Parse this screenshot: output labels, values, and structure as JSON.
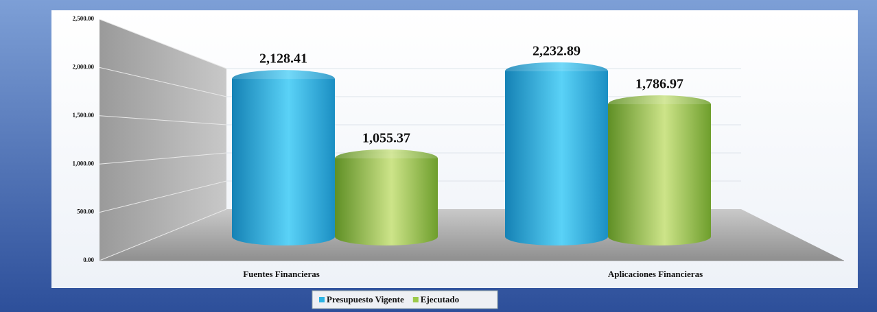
{
  "chart_data": {
    "type": "cylinder",
    "categories": [
      "Fuentes Financieras",
      "Aplicaciones Financieras"
    ],
    "series": [
      {
        "name": "Presupuesto Vigente",
        "color": "#2bb3e3",
        "values": [
          2128.41,
          2232.89
        ],
        "value_labels": [
          "2,128.41",
          "2,232.89"
        ]
      },
      {
        "name": "Ejecutado",
        "color": "#9cc94a",
        "values": [
          1055.37,
          1786.97
        ],
        "value_labels": [
          "1,055.37",
          "1,786.97"
        ]
      }
    ],
    "ylim": [
      0,
      2500
    ],
    "yticks": [
      {
        "value": 0,
        "label": "0.00"
      },
      {
        "value": 500,
        "label": "500.00"
      },
      {
        "value": 1000,
        "label": "1,000.00"
      },
      {
        "value": 1500,
        "label": "1,500.00"
      },
      {
        "value": 2000,
        "label": "2,000.00"
      },
      {
        "value": 2500,
        "label": "2,500.00"
      }
    ],
    "grid": true,
    "legend": "bottom"
  }
}
